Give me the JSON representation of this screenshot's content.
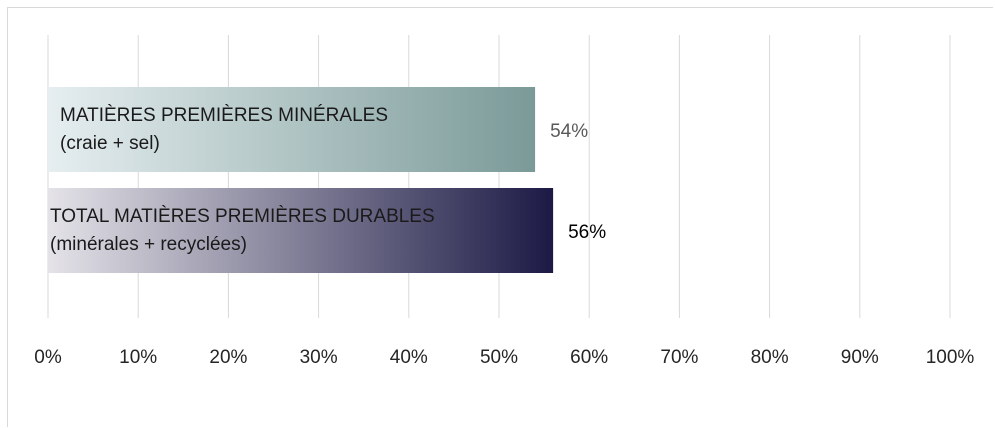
{
  "chart_data": {
    "type": "bar",
    "orientation": "horizontal",
    "categories": [
      [
        "MATIÈRES PREMIÈRES MINÉRALES",
        "(craie + sel)"
      ],
      [
        "TOTAL MATIÈRES PREMIÈRES DURABLES",
        "(minérales + recyclées)"
      ]
    ],
    "values": [
      54,
      56
    ],
    "value_labels": [
      "54%",
      "56%"
    ],
    "xlim": [
      0,
      100
    ],
    "x_ticks": [
      "0%",
      "10%",
      "20%",
      "30%",
      "40%",
      "50%",
      "60%",
      "70%",
      "80%",
      "90%",
      "100%"
    ],
    "grid": "vertical",
    "legend": "none",
    "colors": {
      "bar1_start": "#e6eef0",
      "bar1_end": "#7a9a98",
      "bar2_start": "#e4e3e8",
      "bar2_end": "#1c1a45",
      "grid": "#d9d9d9",
      "label1": "#595959",
      "label2": "#000000"
    }
  }
}
